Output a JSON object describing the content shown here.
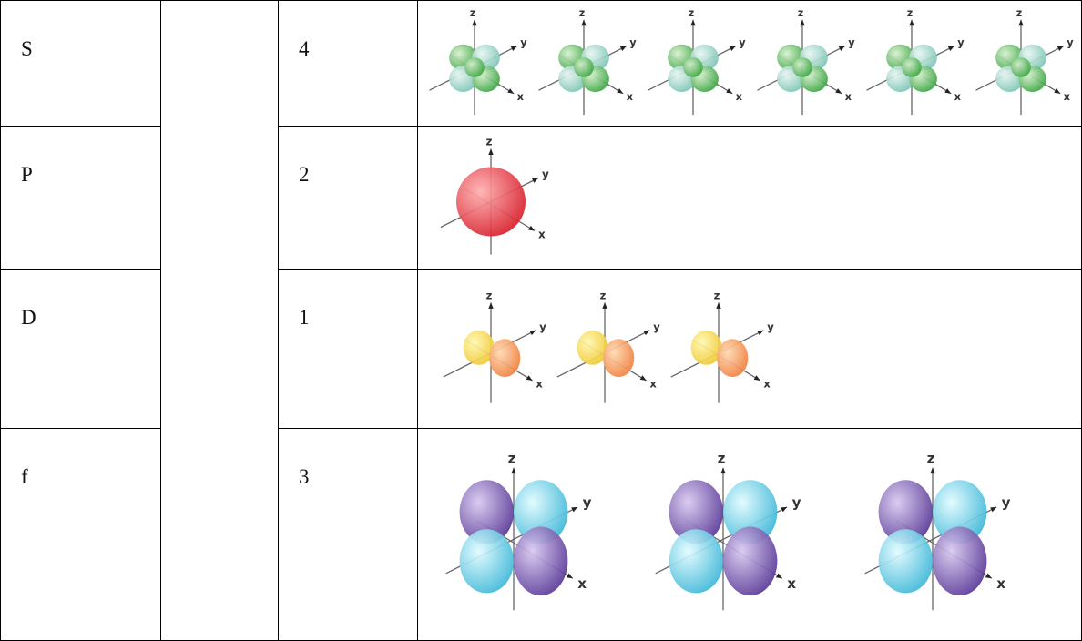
{
  "table": {
    "rows": [
      {
        "label": "S",
        "count": 4
      },
      {
        "label": "P",
        "count": 2
      },
      {
        "label": "D",
        "count": 1
      },
      {
        "label": "f",
        "count": 3
      }
    ]
  },
  "axes": {
    "x": "x",
    "y": "y",
    "z": "z"
  }
}
